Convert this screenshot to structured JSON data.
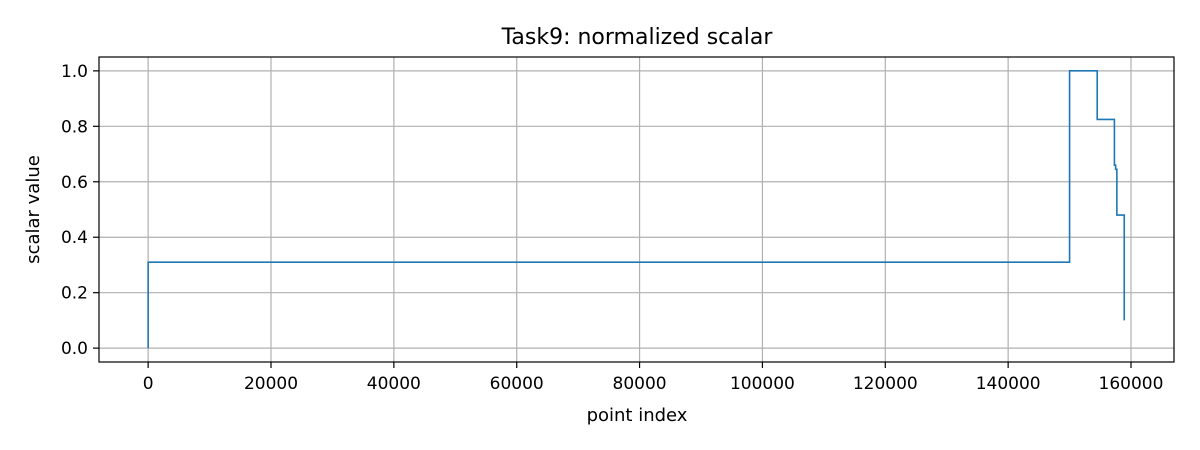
{
  "chart_data": {
    "type": "line",
    "title": "Task9: normalized scalar",
    "xlabel": "point index",
    "ylabel": "scalar value",
    "xlim": [
      -8000,
      167000
    ],
    "ylim": [
      -0.05,
      1.05
    ],
    "xticks": [
      0,
      20000,
      40000,
      60000,
      80000,
      100000,
      120000,
      140000,
      160000
    ],
    "yticks": [
      0.0,
      0.2,
      0.4,
      0.6,
      0.8,
      1.0
    ],
    "xtick_labels": [
      "0",
      "20000",
      "40000",
      "60000",
      "80000",
      "100000",
      "120000",
      "140000",
      "160000"
    ],
    "ytick_labels": [
      "0.0",
      "0.2",
      "0.4",
      "0.6",
      "0.8",
      "1.0"
    ],
    "grid": true,
    "series": [
      {
        "color": "#1f77b4",
        "x": [
          0,
          0,
          150000,
          150000,
          154500,
          154500,
          157300,
          157300,
          157500,
          157500,
          157700,
          157700,
          158900,
          158900
        ],
        "y": [
          0.0,
          0.31,
          0.31,
          1.0,
          1.0,
          0.825,
          0.825,
          0.66,
          0.66,
          0.645,
          0.645,
          0.48,
          0.48,
          0.1
        ]
      }
    ]
  }
}
